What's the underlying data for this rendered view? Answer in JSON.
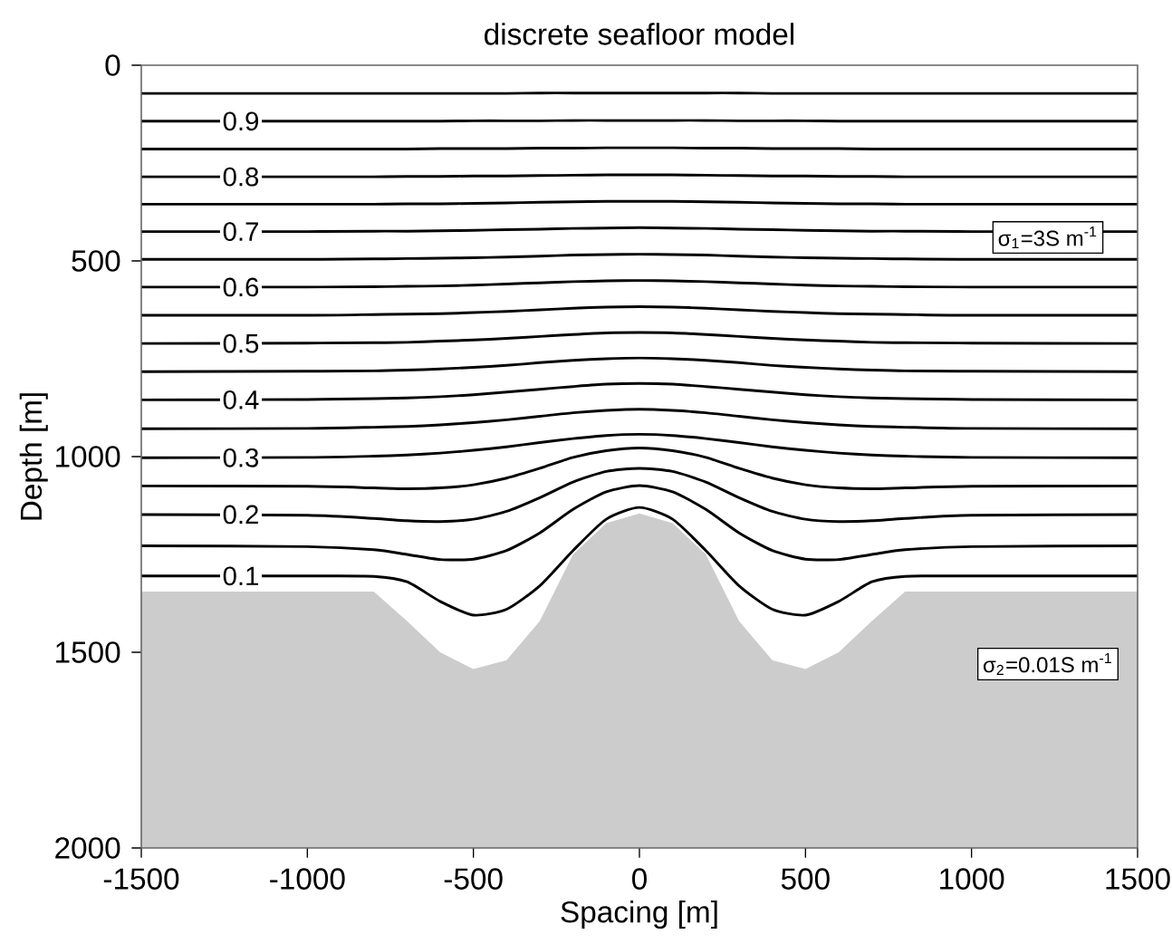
{
  "chart_data": {
    "type": "line",
    "title": "discrete seafloor model",
    "xlabel": "Spacing [m]",
    "ylabel": "Depth [m]",
    "annotations": [
      "σ$_{1}$=3S m$^{-1}$",
      "σ$_{2}$=0.01S m$^{-1}$"
    ],
    "x": [
      -1500,
      -1000,
      -800,
      -700,
      -600,
      -500,
      -400,
      -300,
      -200,
      -100,
      0,
      100,
      200,
      300,
      400,
      500,
      600,
      700,
      800,
      1000,
      1500
    ],
    "xlim": [
      -1500,
      1500
    ],
    "xticks": [
      -1500,
      -1000,
      -500,
      0,
      500,
      1000,
      1500
    ],
    "ylim": [
      2000,
      0
    ],
    "yticks": [
      0,
      500,
      1000,
      1500,
      2000
    ],
    "series": [
      {
        "type": "area",
        "color": "#cccccc",
        "x": [
          -1500,
          -1500,
          -1000,
          -800,
          -700,
          -600,
          -500,
          -400,
          -300,
          -200,
          -100,
          0,
          100,
          200,
          300,
          400,
          500,
          600,
          700,
          800,
          1000,
          1500,
          1500
        ],
        "values": [
          2000,
          1345,
          1345,
          1345,
          1420,
          1500,
          1543,
          1520,
          1420,
          1250,
          1170,
          1145,
          1170,
          1250,
          1420,
          1520,
          1543,
          1500,
          1420,
          1345,
          1345,
          1345,
          2000
        ]
      },
      {
        "name": "0.1",
        "color": "#000000",
        "values": [
          1305,
          1305,
          1306,
          1320,
          1370,
          1405,
          1390,
          1330,
          1240,
          1160,
          1130,
          1160,
          1240,
          1330,
          1390,
          1405,
          1370,
          1320,
          1306,
          1305,
          1305
        ]
      },
      {
        "color": "#000000",
        "values": [
          1228,
          1230,
          1238,
          1250,
          1263,
          1262,
          1240,
          1195,
          1135,
          1090,
          1074,
          1090,
          1135,
          1195,
          1240,
          1262,
          1263,
          1250,
          1238,
          1230,
          1228
        ]
      },
      {
        "name": "0.2",
        "color": "#000000",
        "values": [
          1148,
          1150,
          1158,
          1164,
          1166,
          1160,
          1140,
          1105,
          1065,
          1038,
          1030,
          1038,
          1065,
          1105,
          1140,
          1160,
          1166,
          1164,
          1158,
          1150,
          1148
        ]
      },
      {
        "color": "#000000",
        "values": [
          1075,
          1076,
          1080,
          1082,
          1080,
          1072,
          1055,
          1030,
          1002,
          985,
          978,
          985,
          1002,
          1030,
          1055,
          1072,
          1080,
          1082,
          1080,
          1076,
          1075
        ]
      },
      {
        "name": "0.3",
        "color": "#000000",
        "values": [
          1003,
          1002,
          999,
          996,
          991,
          984,
          975,
          964,
          954,
          946,
          943,
          946,
          954,
          964,
          975,
          984,
          991,
          996,
          999,
          1002,
          1003
        ]
      },
      {
        "color": "#000000",
        "values": [
          929,
          928,
          925,
          923,
          919,
          913,
          906,
          897,
          888,
          882,
          879,
          882,
          888,
          897,
          906,
          913,
          919,
          923,
          925,
          928,
          929
        ]
      },
      {
        "name": "0.4",
        "color": "#000000",
        "values": [
          855,
          854,
          852,
          850,
          847,
          842,
          835,
          828,
          821,
          815,
          813,
          815,
          821,
          828,
          835,
          842,
          847,
          850,
          852,
          854,
          855
        ]
      },
      {
        "color": "#000000",
        "values": [
          783,
          782,
          781,
          779,
          776,
          772,
          767,
          760,
          754,
          750,
          748,
          750,
          754,
          760,
          767,
          772,
          776,
          779,
          781,
          782,
          783
        ]
      },
      {
        "name": "0.5",
        "color": "#000000",
        "values": [
          711,
          710,
          709,
          708,
          705,
          702,
          698,
          693,
          688,
          684,
          683,
          684,
          688,
          693,
          698,
          702,
          705,
          708,
          709,
          710,
          711
        ]
      },
      {
        "color": "#000000",
        "values": [
          639,
          639,
          637,
          636,
          635,
          632,
          629,
          625,
          621,
          618,
          617,
          618,
          621,
          625,
          629,
          632,
          635,
          636,
          637,
          639,
          639
        ]
      },
      {
        "name": "0.6",
        "color": "#000000",
        "values": [
          567,
          567,
          566,
          565,
          564,
          562,
          559,
          556,
          553,
          551,
          550,
          551,
          553,
          556,
          559,
          562,
          564,
          565,
          566,
          567,
          567
        ]
      },
      {
        "color": "#000000",
        "values": [
          496,
          496,
          495,
          494,
          493,
          492,
          490,
          488,
          485,
          484,
          483,
          484,
          485,
          488,
          490,
          492,
          493,
          494,
          495,
          496,
          496
        ]
      },
      {
        "name": "0.7",
        "color": "#000000",
        "values": [
          425,
          425,
          424,
          424,
          423,
          422,
          420,
          419,
          417,
          416,
          415,
          416,
          417,
          419,
          420,
          422,
          423,
          424,
          424,
          425,
          425
        ]
      },
      {
        "color": "#000000",
        "values": [
          355,
          355,
          355,
          354,
          354,
          353,
          352,
          350,
          349,
          348,
          348,
          348,
          349,
          350,
          352,
          353,
          354,
          354,
          355,
          355,
          355
        ]
      },
      {
        "name": "0.8",
        "color": "#000000",
        "values": [
          285,
          285,
          285,
          284,
          284,
          283,
          283,
          282,
          281,
          280,
          280,
          280,
          281,
          282,
          283,
          283,
          284,
          284,
          285,
          285,
          285
        ]
      },
      {
        "color": "#000000",
        "values": [
          214,
          214,
          214,
          214,
          213,
          213,
          213,
          212,
          212,
          211,
          211,
          211,
          212,
          212,
          213,
          213,
          213,
          214,
          214,
          214,
          214
        ]
      },
      {
        "name": "0.9",
        "color": "#000000",
        "values": [
          143,
          143,
          143,
          143,
          143,
          142,
          142,
          142,
          141,
          141,
          141,
          141,
          141,
          142,
          142,
          142,
          143,
          143,
          143,
          143,
          143
        ]
      },
      {
        "color": "#000000",
        "values": [
          72,
          72,
          72,
          72,
          72,
          72,
          72,
          71,
          71,
          71,
          71,
          71,
          71,
          71,
          72,
          72,
          72,
          72,
          72,
          72,
          72
        ]
      }
    ]
  }
}
